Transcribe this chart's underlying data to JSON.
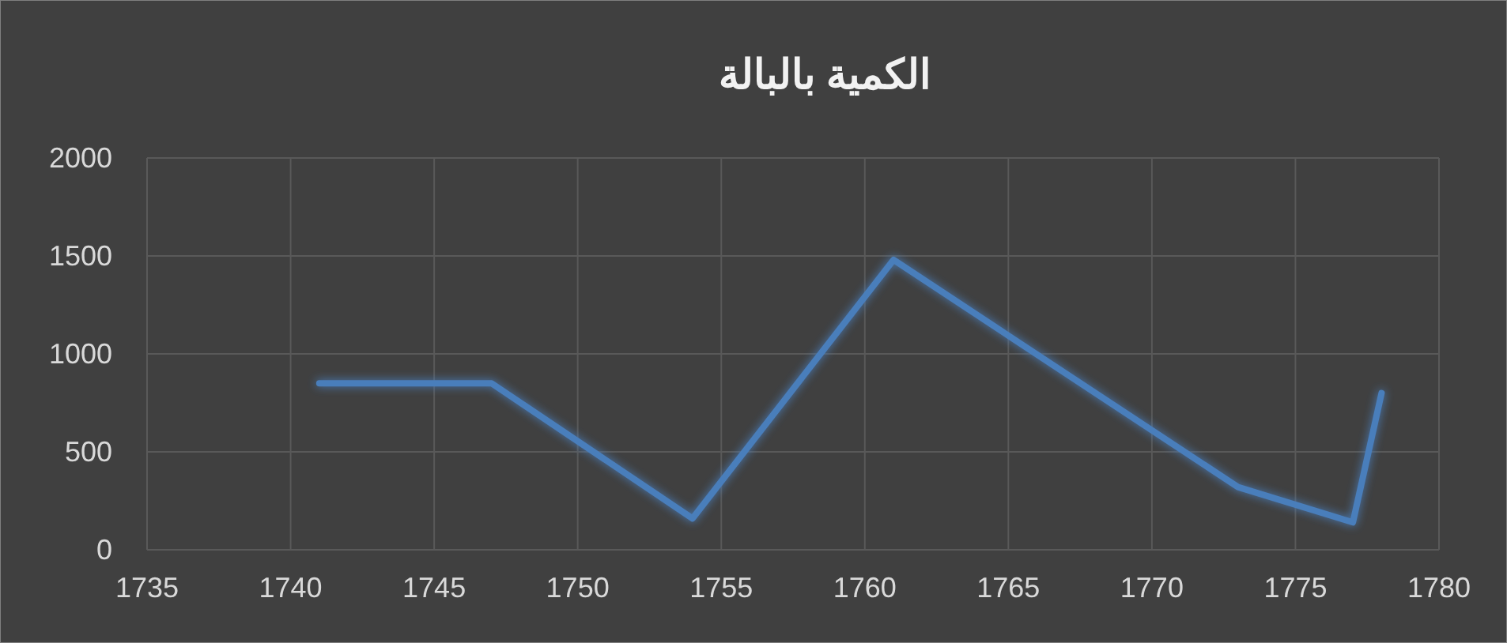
{
  "chart_data": {
    "type": "line",
    "title": "الكمية بالبالة",
    "x": [
      1741,
      1747,
      1754,
      1761,
      1773,
      1777,
      1778
    ],
    "series": [
      {
        "color": "#4a7ebb",
        "values": [
          850,
          850,
          160,
          1480,
          320,
          140,
          800
        ]
      }
    ],
    "xlim": [
      1735,
      1780
    ],
    "xticks": [
      1735,
      1740,
      1745,
      1750,
      1755,
      1760,
      1765,
      1770,
      1775,
      1780
    ],
    "ylim": [
      0,
      2000
    ],
    "yticks": [
      0,
      500,
      1000,
      1500,
      2000
    ],
    "grid": true,
    "line_style": "solid"
  }
}
